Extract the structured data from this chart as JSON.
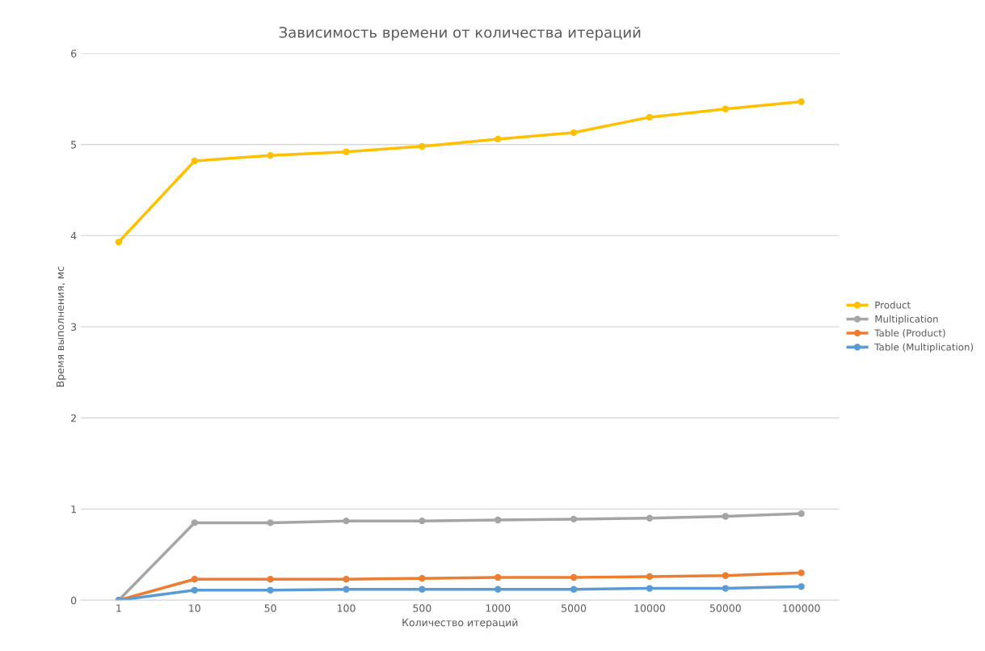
{
  "chart_data": {
    "type": "line",
    "title": "Зависимость времени от количества итераций",
    "xlabel": "Количество итераций",
    "ylabel": "Время выполнения, мс",
    "categories": [
      "1",
      "10",
      "50",
      "100",
      "500",
      "1000",
      "5000",
      "10000",
      "50000",
      "100000"
    ],
    "series": [
      {
        "name": "Product",
        "color": "#ffc000",
        "values": [
          3.93,
          4.82,
          4.88,
          4.92,
          4.98,
          5.06,
          5.13,
          5.3,
          5.39,
          5.47
        ]
      },
      {
        "name": "Multiplication",
        "color": "#a5a5a5",
        "values": [
          0,
          0.85,
          0.85,
          0.87,
          0.87,
          0.88,
          0.89,
          0.9,
          0.92,
          0.95
        ]
      },
      {
        "name": "Table (Product)",
        "color": "#ed7d31",
        "values": [
          0,
          0.23,
          0.23,
          0.23,
          0.24,
          0.25,
          0.25,
          0.26,
          0.27,
          0.3
        ]
      },
      {
        "name": "Table (Multiplication)",
        "color": "#5b9bd5",
        "values": [
          0,
          0.11,
          0.11,
          0.12,
          0.12,
          0.12,
          0.12,
          0.13,
          0.13,
          0.15
        ]
      }
    ],
    "ylim": [
      0,
      6
    ],
    "yticks": [
      0,
      1,
      2,
      3,
      4,
      5,
      6
    ],
    "grid": "y",
    "legend": "right",
    "marker": "circle",
    "line_style": "solid"
  }
}
